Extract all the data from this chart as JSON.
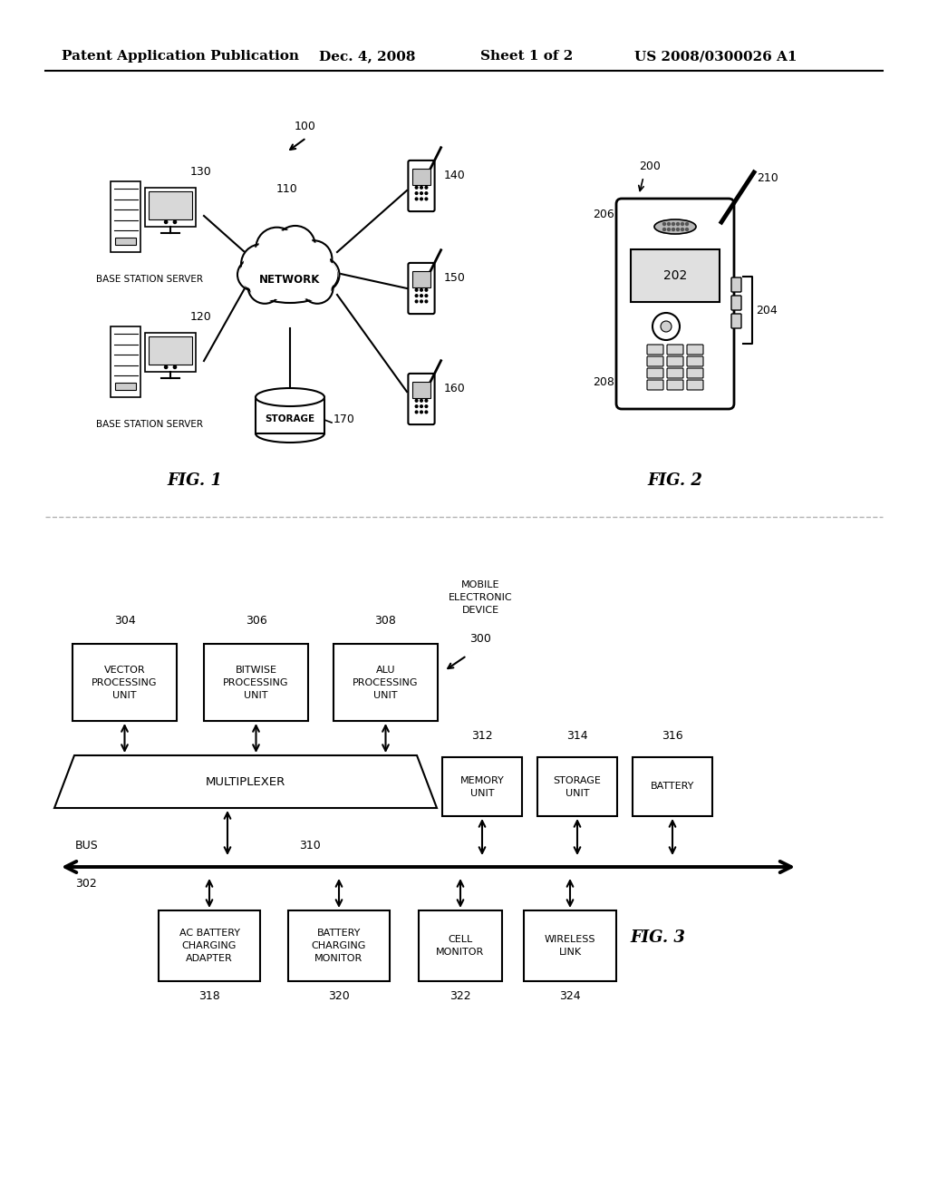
{
  "title_line1": "Patent Application Publication",
  "title_date": "Dec. 4, 2008",
  "title_sheet": "Sheet 1 of 2",
  "title_patent": "US 2008/0300026 A1",
  "background_color": "#ffffff",
  "fig1_label": "FIG. 1",
  "fig2_label": "FIG. 2",
  "fig3_label": "FIG. 3"
}
